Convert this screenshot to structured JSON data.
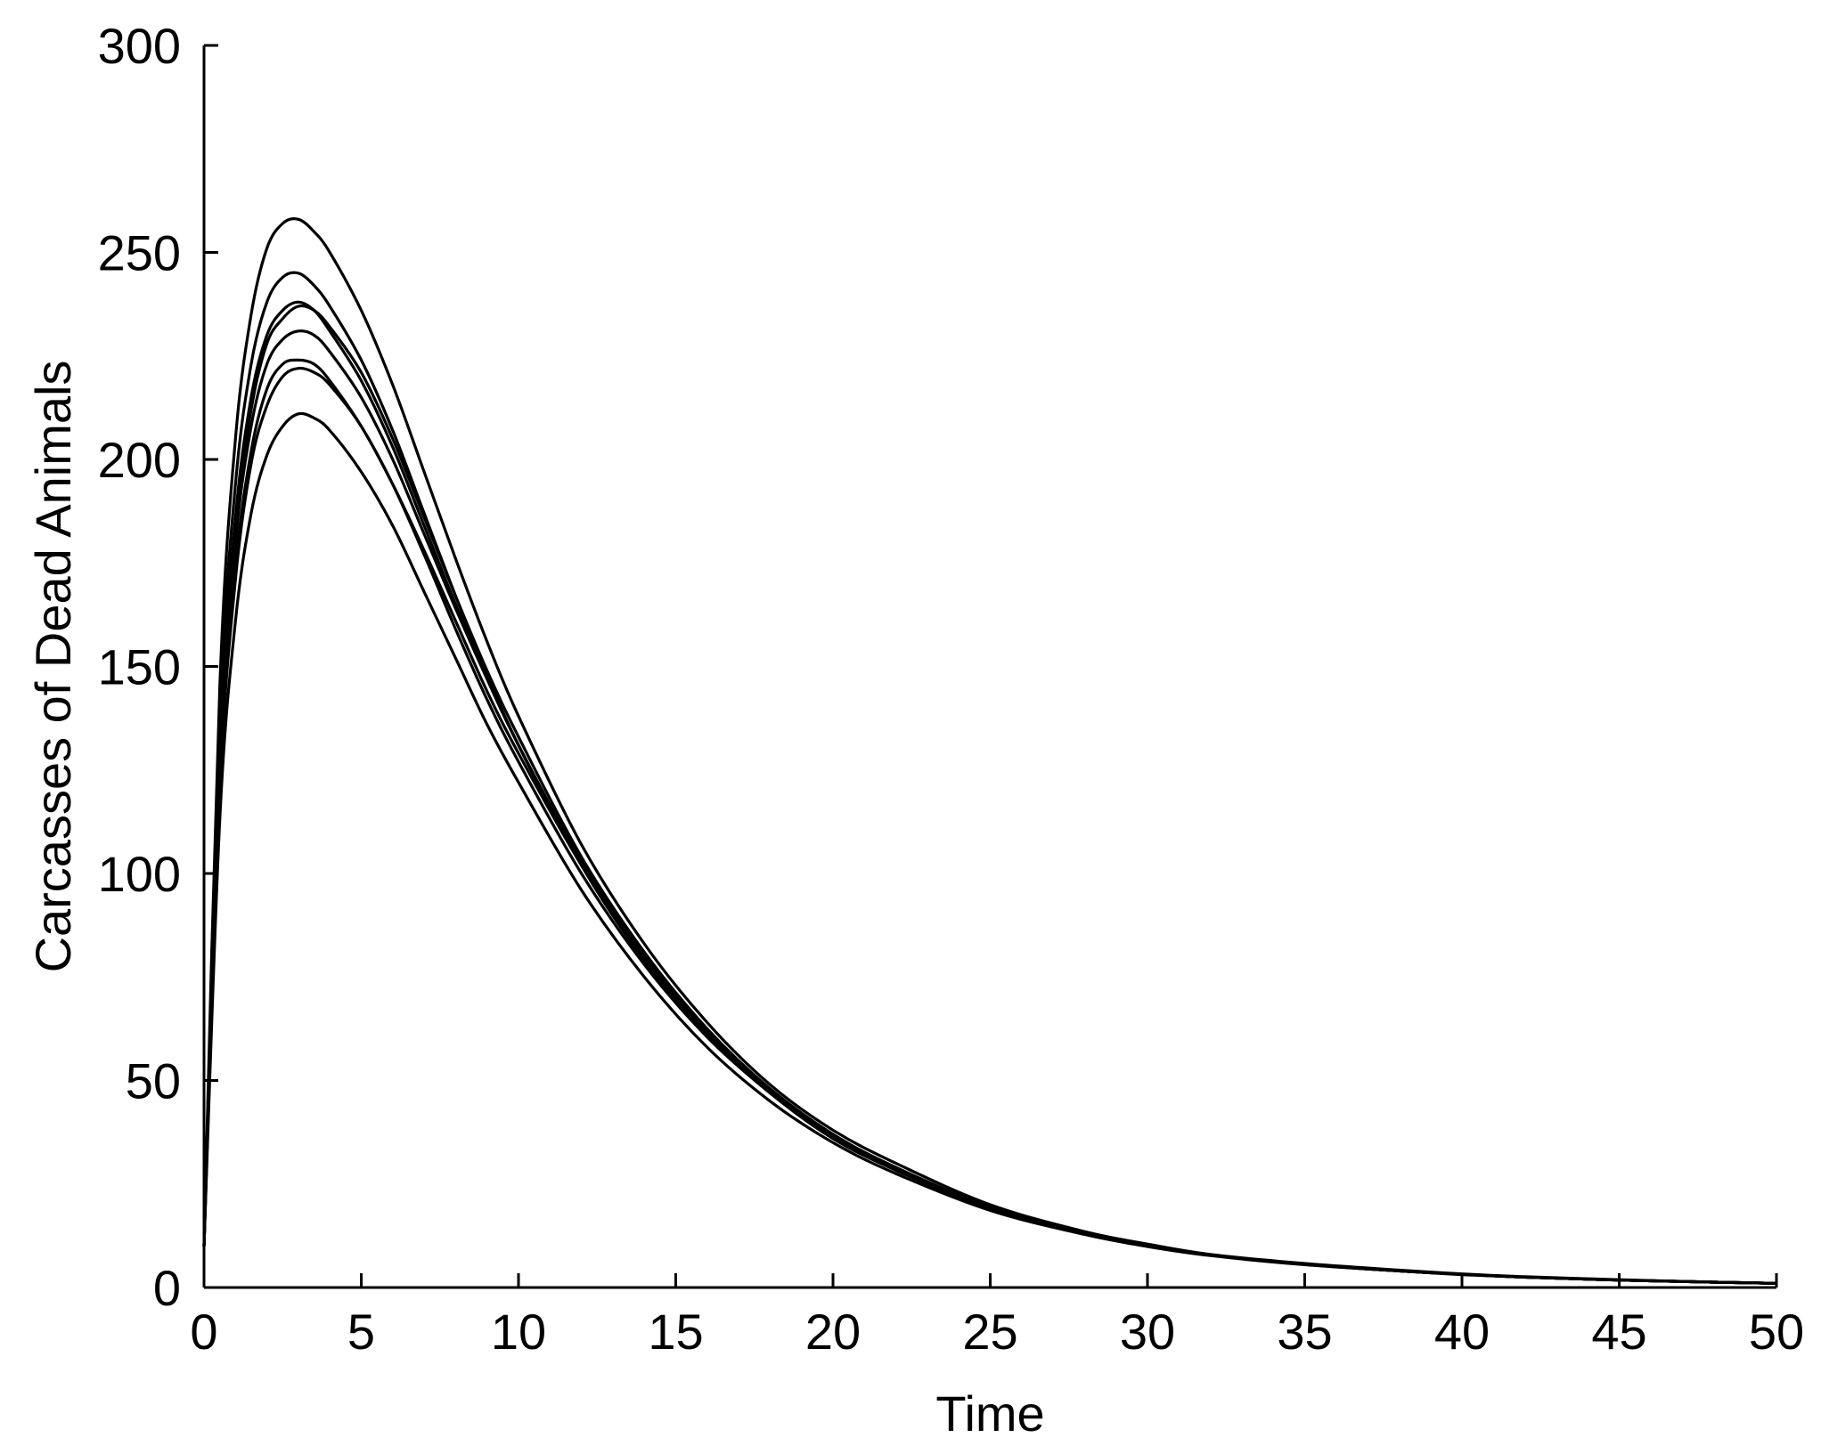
{
  "chart_data": {
    "type": "line",
    "title": "",
    "xlabel": "Time",
    "ylabel": "Carcasses of Dead Animals",
    "xlim": [
      0,
      50
    ],
    "ylim": [
      0,
      300
    ],
    "xticks": [
      0,
      5,
      10,
      15,
      20,
      25,
      30,
      35,
      40,
      45,
      50
    ],
    "yticks": [
      0,
      50,
      100,
      150,
      200,
      250,
      300
    ],
    "grid": false,
    "legend": "none",
    "line_color": "#000000",
    "x": [
      0,
      0.5,
      1,
      1.5,
      2,
      2.5,
      3,
      3.5,
      4,
      5,
      6,
      7,
      8,
      9,
      10,
      12,
      14,
      16,
      18,
      20,
      22,
      25,
      28,
      30,
      32,
      35,
      38,
      40,
      42,
      45,
      48,
      50
    ],
    "series": [
      {
        "values": [
          10,
          145,
          205,
          235,
          251,
          257,
          258,
          255,
          250,
          236,
          218,
          197,
          176,
          156,
          138,
          107,
          83,
          64,
          49,
          38,
          30,
          20,
          13.5,
          10.5,
          8,
          5.8,
          4.2,
          3.3,
          2.6,
          1.9,
          1.3,
          1
        ]
      },
      {
        "values": [
          10,
          137,
          194,
          223,
          238,
          244,
          245,
          242,
          237,
          224,
          207,
          187,
          167,
          148,
          131,
          102,
          79,
          61,
          47,
          36,
          28.5,
          19,
          13,
          10,
          7.8,
          5.6,
          4,
          3.2,
          2.5,
          1.8,
          1.3,
          1
        ]
      },
      {
        "values": [
          10,
          131,
          186,
          215,
          230,
          236,
          238,
          236,
          231,
          219,
          203,
          184,
          165,
          147,
          131,
          102,
          79,
          61,
          47,
          36.5,
          28.5,
          19.2,
          13.1,
          10.1,
          7.8,
          5.6,
          4,
          3.2,
          2.5,
          1.8,
          1.3,
          1
        ]
      },
      {
        "values": [
          10,
          128,
          183,
          212,
          228,
          234,
          237,
          236,
          232,
          221,
          205,
          186,
          167,
          149,
          133,
          104,
          81,
          62.5,
          48,
          37,
          29,
          19.5,
          13.3,
          10.3,
          7.9,
          5.7,
          4.1,
          3.2,
          2.5,
          1.8,
          1.3,
          1
        ]
      },
      {
        "values": [
          10,
          127,
          180,
          208,
          223,
          229,
          231,
          230,
          226,
          215,
          200,
          182,
          164,
          147,
          131,
          103,
          80,
          62,
          48,
          37,
          29,
          19.4,
          13.2,
          10.2,
          7.9,
          5.7,
          4.1,
          3.2,
          2.5,
          1.8,
          1.3,
          1
        ]
      },
      {
        "values": [
          10,
          122,
          174,
          202,
          217,
          223,
          224,
          223,
          219,
          208,
          194,
          177,
          159,
          142,
          127,
          100,
          78,
          60.5,
          47,
          36,
          28.3,
          19,
          13,
          10,
          7.8,
          5.6,
          4,
          3.2,
          2.5,
          1.8,
          1.3,
          1
        ]
      },
      {
        "values": [
          10,
          120,
          171,
          199,
          213,
          220,
          222,
          221,
          218,
          208,
          194,
          178,
          161,
          144,
          129,
          102,
          79,
          61.5,
          47.5,
          36.8,
          28.7,
          19.3,
          13.1,
          10.1,
          7.8,
          5.6,
          4,
          3.2,
          2.5,
          1.8,
          1.3,
          1
        ]
      },
      {
        "values": [
          10,
          113,
          161,
          187,
          201,
          208,
          211,
          210,
          207,
          197,
          184,
          168,
          152,
          136,
          122,
          96,
          75,
          58,
          45,
          35,
          27.5,
          18.6,
          12.8,
          9.9,
          7.7,
          5.5,
          4,
          3.1,
          2.5,
          1.8,
          1.3,
          1
        ]
      }
    ]
  }
}
